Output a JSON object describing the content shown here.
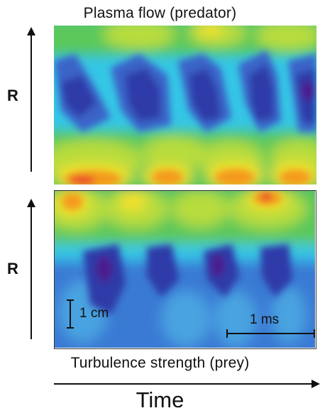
{
  "titles": {
    "top": "Plasma flow (predator)",
    "bottom": "Turbulence strength (prey)"
  },
  "axes": {
    "y_label": "R",
    "x_label": "Time"
  },
  "scale_bars": {
    "space": "1 cm",
    "time": "1 ms"
  },
  "colors": {
    "deep_violet": "#4b1d8f",
    "dark_blue": "#2f3aa8",
    "blue": "#3a63c8",
    "light_blue": "#4aa3e0",
    "cyan": "#35c6e6",
    "green": "#5cc85a",
    "yellow_green": "#b7dc3c",
    "yellow": "#f2e12b",
    "orange": "#f49a1e",
    "red": "#e8452a"
  }
}
